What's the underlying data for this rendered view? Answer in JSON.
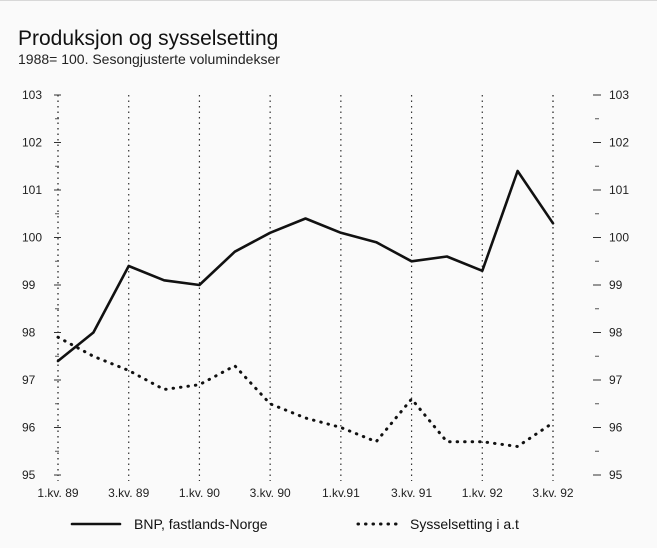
{
  "chart_data": {
    "type": "line",
    "title": "Produksjon og sysselsetting",
    "subtitle": "1988= 100. Sesongjusterte volumindekser",
    "xlabel": "",
    "ylabel": "",
    "ylim": [
      95,
      103
    ],
    "yticks": [
      95,
      96,
      97,
      98,
      99,
      100,
      101,
      102,
      103
    ],
    "ytick_labels": [
      "95",
      "96",
      "97",
      "98",
      "99",
      "100",
      "101",
      "102",
      "103"
    ],
    "categories": [
      "1.kv. 89",
      "2.kv. 89",
      "3.kv. 89",
      "4.kv. 89",
      "1.kv. 90",
      "2.kv. 90",
      "3.kv. 90",
      "4.kv. 90",
      "1.kv.91",
      "2.kv.91",
      "3.kv. 91",
      "4.kv. 91",
      "1.kv. 92",
      "2.kv. 92",
      "3.kv. 92"
    ],
    "x_tick_labels": [
      "1.kv. 89",
      "",
      "3.kv. 89",
      "",
      "1.kv. 90",
      "",
      "3.kv. 90",
      "",
      "1.kv.91",
      "",
      "3.kv. 91",
      "",
      "1.kv. 92",
      "",
      "3.kv. 92"
    ],
    "grid": "vertical dotted at labelled quarters",
    "legend": "bottom",
    "series": [
      {
        "name": "BNP, fastlands-Norge",
        "style": "solid",
        "color": "#111111",
        "values": [
          97.4,
          98.0,
          99.4,
          99.1,
          99.0,
          99.7,
          100.1,
          100.4,
          100.1,
          99.9,
          99.5,
          99.6,
          99.3,
          101.4,
          100.3
        ]
      },
      {
        "name": "Sysselsetting i a.t",
        "style": "dotted",
        "color": "#111111",
        "values": [
          97.9,
          97.5,
          97.2,
          96.8,
          96.9,
          97.3,
          96.5,
          96.2,
          96.0,
          95.7,
          96.6,
          95.7,
          95.7,
          95.6,
          96.1
        ]
      }
    ]
  }
}
